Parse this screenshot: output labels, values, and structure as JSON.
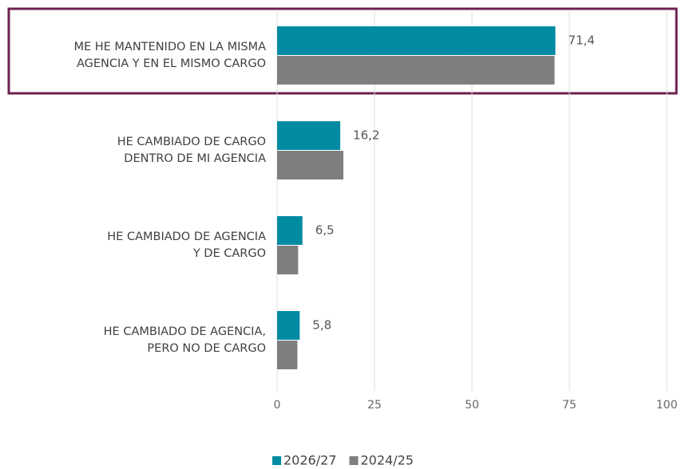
{
  "chart_data": {
    "type": "barh",
    "categories": [
      "ME HE MANTENIDO EN LA MISMA\nAGENCIA Y EN EL MISMO CARGO",
      "HE CAMBIADO DE CARGO\nDENTRO DE MI AGENCIA",
      "HE CAMBIADO DE AGENCIA\nY DE CARGO",
      "HE CAMBIADO DE AGENCIA,\nPERO NO DE CARGO"
    ],
    "series": [
      {
        "name": "2026/27",
        "color": "#008ba3",
        "values": [
          71.4,
          16.2,
          6.5,
          5.8
        ],
        "value_labels": [
          "71,4",
          "16,2",
          "6,5",
          "5,8"
        ]
      },
      {
        "name": "2024/25",
        "color": "#7f7f7f",
        "values": [
          71.2,
          17.0,
          5.4,
          5.2
        ]
      }
    ],
    "xlim": [
      0,
      100
    ],
    "xticks": [
      0,
      25,
      50,
      75,
      100
    ],
    "grid": true,
    "legend": "bottom"
  }
}
